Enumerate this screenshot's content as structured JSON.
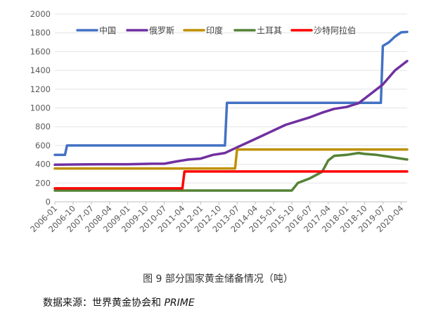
{
  "caption": "图 9 部分国家黄金储备情况（吨）",
  "source_prefix": "数据来源：世界黄金协会和 ",
  "source_italic": "PRIME",
  "chart_data": {
    "type": "line",
    "title": "",
    "xlabel": "",
    "ylabel": "",
    "ylim": [
      0,
      2000
    ],
    "yticks": [
      0,
      200,
      400,
      600,
      800,
      1000,
      1200,
      1400,
      1600,
      1800,
      2000
    ],
    "xlim": [
      "2006-01",
      "2020-07"
    ],
    "xticks": [
      "2006-01",
      "2006-10",
      "2007-07",
      "2008-04",
      "2009-01",
      "2009-10",
      "2010-07",
      "2011-04",
      "2012-01",
      "2012-10",
      "2013-07",
      "2014-04",
      "2015-01",
      "2015-10",
      "2016-07",
      "2017-04",
      "2018-01",
      "2018-10",
      "2019-07",
      "2020-04"
    ],
    "grid": "horizontal",
    "legend_position": "top",
    "series": [
      {
        "name": "中国",
        "color": "#4472C4",
        "points": [
          [
            "2006-01",
            500
          ],
          [
            "2006-06",
            500
          ],
          [
            "2006-07",
            600
          ],
          [
            "2009-03",
            600
          ],
          [
            "2009-04",
            600
          ],
          [
            "2013-01",
            600
          ],
          [
            "2013-02",
            1054
          ],
          [
            "2015-05",
            1054
          ],
          [
            "2015-06",
            1054
          ],
          [
            "2019-06",
            1054
          ],
          [
            "2019-07",
            1660
          ],
          [
            "2019-10",
            1700
          ],
          [
            "2020-01",
            1760
          ],
          [
            "2020-04",
            1805
          ],
          [
            "2020-07",
            1810
          ]
        ]
      },
      {
        "name": "俄罗斯",
        "color": "#7030A0",
        "points": [
          [
            "2006-01",
            395
          ],
          [
            "2007-01",
            398
          ],
          [
            "2008-01",
            400
          ],
          [
            "2009-01",
            400
          ],
          [
            "2010-01",
            405
          ],
          [
            "2010-07",
            405
          ],
          [
            "2011-01",
            430
          ],
          [
            "2011-07",
            450
          ],
          [
            "2012-01",
            460
          ],
          [
            "2012-07",
            500
          ],
          [
            "2013-01",
            520
          ],
          [
            "2013-07",
            580
          ],
          [
            "2014-01",
            640
          ],
          [
            "2014-07",
            700
          ],
          [
            "2015-01",
            760
          ],
          [
            "2015-07",
            820
          ],
          [
            "2016-01",
            860
          ],
          [
            "2016-07",
            900
          ],
          [
            "2017-01",
            950
          ],
          [
            "2017-07",
            990
          ],
          [
            "2018-01",
            1010
          ],
          [
            "2018-07",
            1050
          ],
          [
            "2019-01",
            1150
          ],
          [
            "2019-07",
            1250
          ],
          [
            "2020-01",
            1400
          ],
          [
            "2020-07",
            1500
          ]
        ]
      },
      {
        "name": "印度",
        "color": "#BF9000",
        "points": [
          [
            "2006-01",
            355
          ],
          [
            "2013-06",
            355
          ],
          [
            "2013-07",
            557
          ],
          [
            "2020-07",
            557
          ]
        ]
      },
      {
        "name": "土耳其",
        "color": "#548235",
        "points": [
          [
            "2006-01",
            120
          ],
          [
            "2015-10",
            120
          ],
          [
            "2016-01",
            200
          ],
          [
            "2016-07",
            250
          ],
          [
            "2017-01",
            320
          ],
          [
            "2017-04",
            440
          ],
          [
            "2017-07",
            490
          ],
          [
            "2018-01",
            500
          ],
          [
            "2018-07",
            520
          ],
          [
            "2018-10",
            510
          ],
          [
            "2019-04",
            500
          ],
          [
            "2019-10",
            480
          ],
          [
            "2020-01",
            470
          ],
          [
            "2020-07",
            450
          ]
        ]
      },
      {
        "name": "沙特阿拉伯",
        "color": "#FF0000",
        "points": [
          [
            "2006-01",
            143
          ],
          [
            "2011-04",
            143
          ],
          [
            "2011-05",
            323
          ],
          [
            "2020-07",
            323
          ]
        ]
      }
    ]
  }
}
